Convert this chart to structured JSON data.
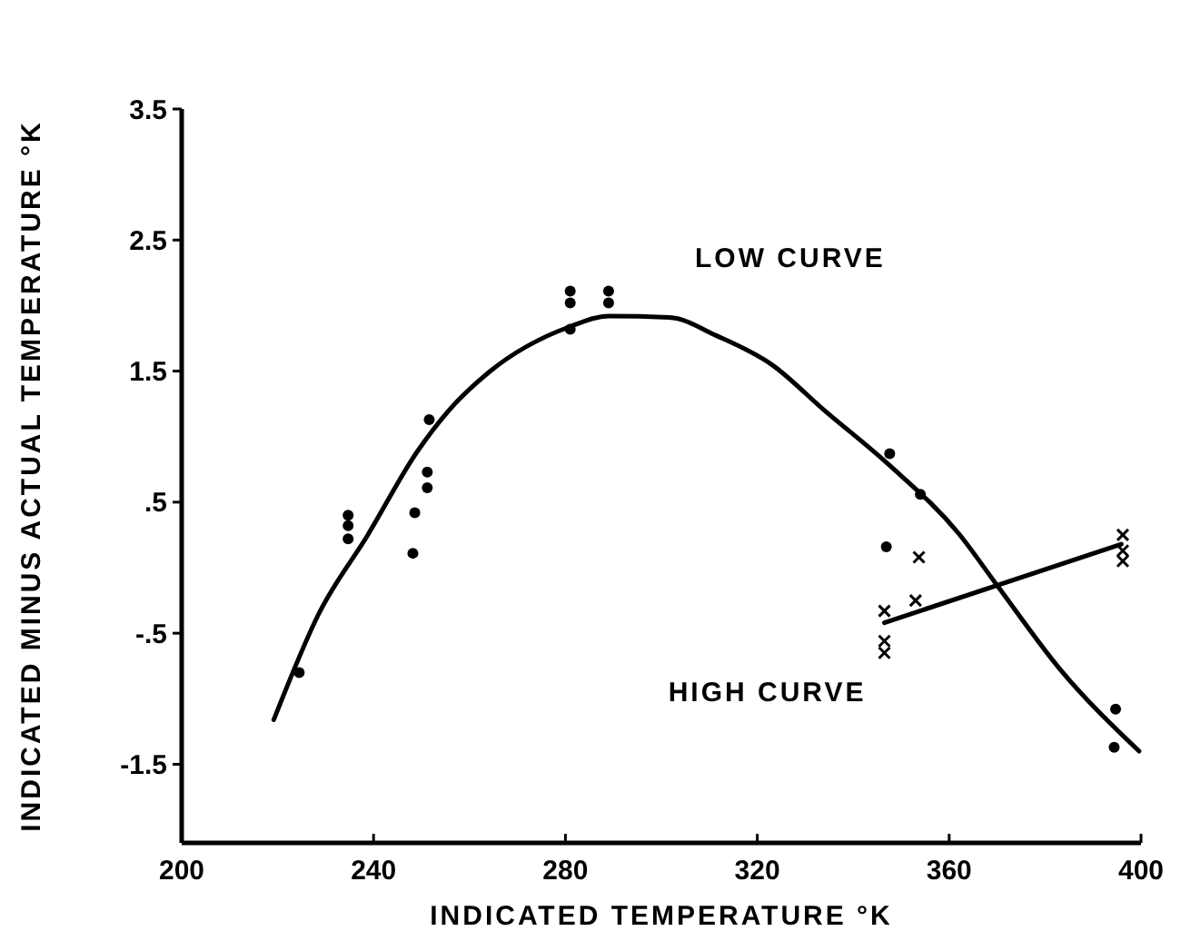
{
  "chart_data": {
    "type": "scatter",
    "xlabel": "INDICATED TEMPERATURE °K",
    "ylabel": "INDICATED MINUS ACTUAL TEMPERATURE °K",
    "xlim": [
      200,
      400
    ],
    "ylim": [
      -2.1,
      3.5
    ],
    "xticks": [
      200,
      240,
      280,
      320,
      360,
      400
    ],
    "yticks": [
      {
        "value": -1.5,
        "label": "-1.5"
      },
      {
        "value": -0.5,
        "label": "-.5"
      },
      {
        "value": 0.5,
        "label": ".5"
      },
      {
        "value": 1.5,
        "label": "1.5"
      },
      {
        "value": 2.5,
        "label": "2.5"
      },
      {
        "value": 3.5,
        "label": "3.5"
      }
    ],
    "grid": false,
    "series": [
      {
        "marker": "circle",
        "color": "#000000",
        "x": [
          224.5,
          234.7,
          234.7,
          234.7,
          248.2,
          248.6,
          251.2,
          251.2,
          251.6,
          281,
          281,
          281,
          289,
          289,
          346.9,
          347.6,
          354,
          394.4,
          394.7
        ],
        "values": [
          -0.8,
          0.4,
          0.32,
          0.22,
          0.11,
          0.42,
          0.61,
          0.73,
          1.13,
          2.11,
          2.02,
          1.82,
          2.11,
          2.02,
          0.16,
          0.87,
          0.56,
          -1.37,
          -1.08
        ]
      },
      {
        "type": "line",
        "name": "LOW CURVE",
        "marker": "none",
        "line_style": "solid",
        "color": "#000000",
        "x": [
          219.2,
          228.6,
          238.8,
          249,
          255.7,
          264,
          281,
          289,
          301.7,
          311.5,
          323,
          334,
          347.6,
          362,
          369.9,
          383,
          399.6
        ],
        "values": [
          -1.16,
          -0.35,
          0.25,
          0.88,
          1.2,
          1.49,
          1.84,
          1.92,
          1.91,
          1.77,
          1.55,
          1.2,
          0.78,
          0.26,
          -0.13,
          -0.77,
          -1.4
        ]
      },
      {
        "marker": "cross",
        "color": "#000000",
        "x": [
          346.5,
          346.5,
          346.5,
          353,
          353.7,
          396.2,
          396.2,
          396.2
        ],
        "values": [
          -0.33,
          -0.56,
          -0.65,
          -0.25,
          0.08,
          0.25,
          0.13,
          0.05
        ]
      },
      {
        "type": "line",
        "name": "HIGH CURVE",
        "marker": "none",
        "line_style": "solid",
        "color": "#000000",
        "x": [
          346.5,
          395.9
        ],
        "values": [
          -0.42,
          0.18
        ]
      }
    ]
  }
}
